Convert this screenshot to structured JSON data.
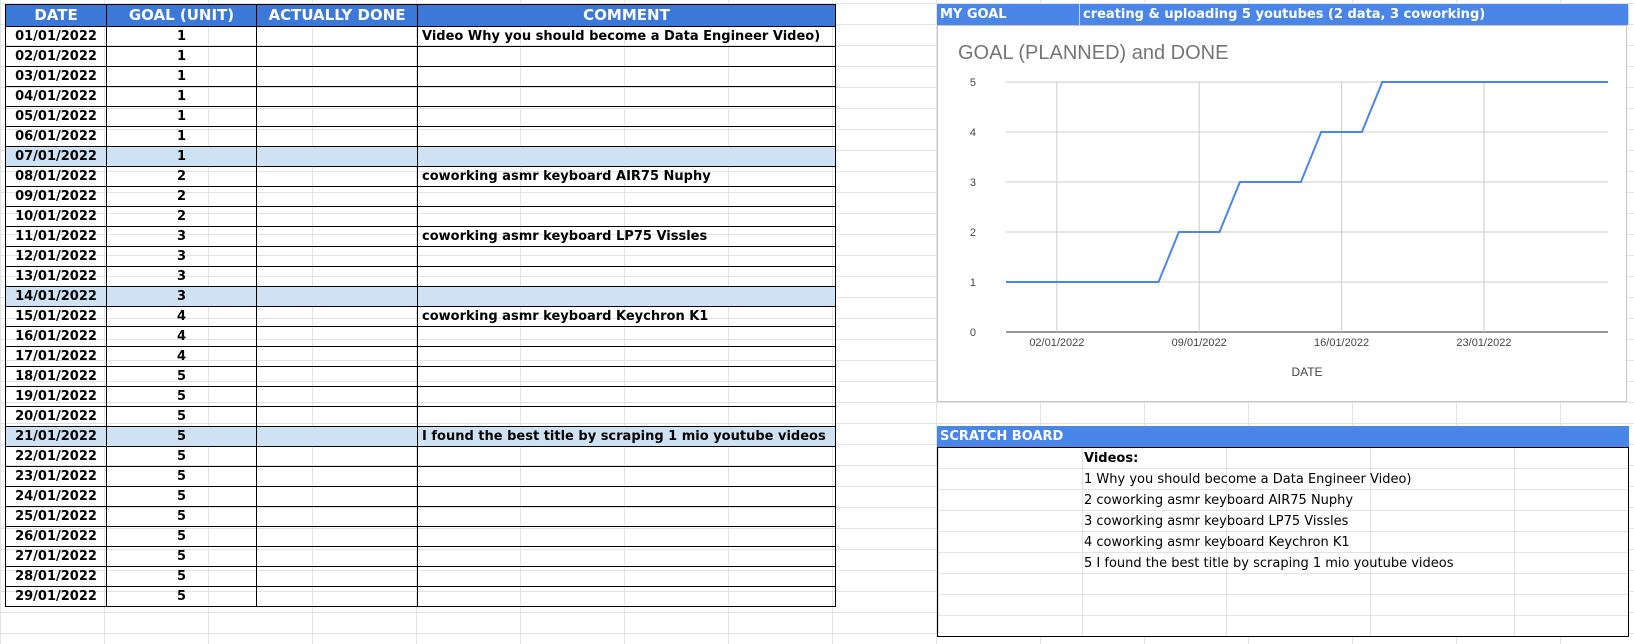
{
  "table": {
    "headers": [
      "DATE",
      "GOAL (UNIT)",
      "ACTUALLY DONE",
      "COMMENT"
    ],
    "rows": [
      {
        "date": "01/01/2022",
        "goal": "1",
        "done": "",
        "comment": "Video Why you should become a Data Engineer Video)",
        "hl": false
      },
      {
        "date": "02/01/2022",
        "goal": "1",
        "done": "",
        "comment": "",
        "hl": false
      },
      {
        "date": "03/01/2022",
        "goal": "1",
        "done": "",
        "comment": "",
        "hl": false
      },
      {
        "date": "04/01/2022",
        "goal": "1",
        "done": "",
        "comment": "",
        "hl": false
      },
      {
        "date": "05/01/2022",
        "goal": "1",
        "done": "",
        "comment": "",
        "hl": false
      },
      {
        "date": "06/01/2022",
        "goal": "1",
        "done": "",
        "comment": "",
        "hl": false
      },
      {
        "date": "07/01/2022",
        "goal": "1",
        "done": "",
        "comment": "",
        "hl": true
      },
      {
        "date": "08/01/2022",
        "goal": "2",
        "done": "",
        "comment": "coworking asmr keyboard AIR75 Nuphy",
        "hl": false
      },
      {
        "date": "09/01/2022",
        "goal": "2",
        "done": "",
        "comment": "",
        "hl": false
      },
      {
        "date": "10/01/2022",
        "goal": "2",
        "done": "",
        "comment": "",
        "hl": false
      },
      {
        "date": "11/01/2022",
        "goal": "3",
        "done": "",
        "comment": "coworking asmr keyboard LP75 Vissles",
        "hl": false
      },
      {
        "date": "12/01/2022",
        "goal": "3",
        "done": "",
        "comment": "",
        "hl": false
      },
      {
        "date": "13/01/2022",
        "goal": "3",
        "done": "",
        "comment": "",
        "hl": false
      },
      {
        "date": "14/01/2022",
        "goal": "3",
        "done": "",
        "comment": "",
        "hl": true
      },
      {
        "date": "15/01/2022",
        "goal": "4",
        "done": "",
        "comment": "coworking asmr keyboard Keychron K1",
        "hl": false
      },
      {
        "date": "16/01/2022",
        "goal": "4",
        "done": "",
        "comment": "",
        "hl": false
      },
      {
        "date": "17/01/2022",
        "goal": "4",
        "done": "",
        "comment": "",
        "hl": false
      },
      {
        "date": "18/01/2022",
        "goal": "5",
        "done": "",
        "comment": "",
        "hl": false
      },
      {
        "date": "19/01/2022",
        "goal": "5",
        "done": "",
        "comment": "",
        "hl": false
      },
      {
        "date": "20/01/2022",
        "goal": "5",
        "done": "",
        "comment": "",
        "hl": false
      },
      {
        "date": "21/01/2022",
        "goal": "5",
        "done": "",
        "comment": "I found the best title by scraping 1 mio youtube videos",
        "hl": true
      },
      {
        "date": "22/01/2022",
        "goal": "5",
        "done": "",
        "comment": "",
        "hl": false
      },
      {
        "date": "23/01/2022",
        "goal": "5",
        "done": "",
        "comment": "",
        "hl": false
      },
      {
        "date": "24/01/2022",
        "goal": "5",
        "done": "",
        "comment": "",
        "hl": false
      },
      {
        "date": "25/01/2022",
        "goal": "5",
        "done": "",
        "comment": "",
        "hl": false
      },
      {
        "date": "26/01/2022",
        "goal": "5",
        "done": "",
        "comment": "",
        "hl": false
      },
      {
        "date": "27/01/2022",
        "goal": "5",
        "done": "",
        "comment": "",
        "hl": false
      },
      {
        "date": "28/01/2022",
        "goal": "5",
        "done": "",
        "comment": "",
        "hl": false
      },
      {
        "date": "29/01/2022",
        "goal": "5",
        "done": "",
        "comment": "",
        "hl": false
      }
    ]
  },
  "goal": {
    "label": "MY GOAL",
    "text": "creating & uploading 5 youtubes (2 data, 3 coworking)"
  },
  "scratch": {
    "label": "SCRATCH BOARD",
    "lines": [
      "Videos:",
      "1 Why you should become a Data Engineer Video)",
      "2 coworking asmr keyboard AIR75 Nuphy",
      "3 coworking asmr keyboard LP75 Vissles",
      "4 coworking asmr keyboard Keychron K1",
      "5 I found the best title by scraping 1 mio youtube videos"
    ]
  },
  "colors": {
    "header_blue": "#3c78d8",
    "bar_blue": "#4a86e8",
    "highlight": "#cfe2f3",
    "line": "#4a86e8"
  },
  "chart_data": {
    "type": "line",
    "title": "GOAL (PLANNED) and DONE",
    "xlabel": "DATE",
    "ylabel": "",
    "x_ticks": [
      "02/01/2022",
      "09/01/2022",
      "16/01/2022",
      "23/01/2022"
    ],
    "y_ticks": [
      "0",
      "1",
      "2",
      "3",
      "4",
      "5"
    ],
    "ylim": [
      0,
      5
    ],
    "grid": true,
    "series": [
      {
        "x": [
          "01/01/2022",
          "02/01/2022",
          "03/01/2022",
          "04/01/2022",
          "05/01/2022",
          "06/01/2022",
          "07/01/2022",
          "08/01/2022",
          "09/01/2022",
          "10/01/2022",
          "11/01/2022",
          "12/01/2022",
          "13/01/2022",
          "14/01/2022",
          "15/01/2022",
          "16/01/2022",
          "17/01/2022",
          "18/01/2022",
          "19/01/2022",
          "20/01/2022",
          "21/01/2022",
          "22/01/2022",
          "23/01/2022",
          "24/01/2022",
          "25/01/2022",
          "26/01/2022",
          "27/01/2022",
          "28/01/2022",
          "29/01/2022"
        ],
        "values": [
          1,
          1,
          1,
          1,
          1,
          1,
          1,
          2,
          2,
          2,
          3,
          3,
          3,
          3,
          4,
          4,
          4,
          5,
          5,
          5,
          5,
          5,
          5,
          5,
          5,
          5,
          5,
          5,
          5
        ]
      }
    ]
  }
}
